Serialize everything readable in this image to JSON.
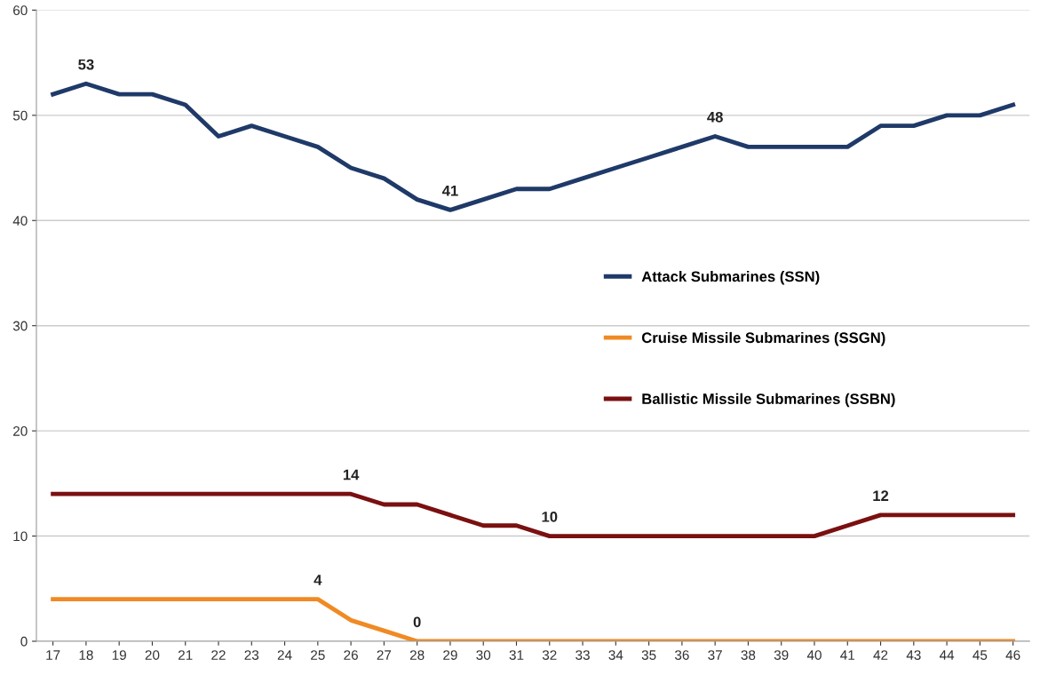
{
  "chart_data": {
    "type": "line",
    "categories": [
      "17",
      "18",
      "19",
      "20",
      "21",
      "22",
      "23",
      "24",
      "25",
      "26",
      "27",
      "28",
      "29",
      "30",
      "31",
      "32",
      "33",
      "34",
      "35",
      "36",
      "37",
      "38",
      "39",
      "40",
      "41",
      "42",
      "43",
      "44",
      "45",
      "46"
    ],
    "series": [
      {
        "name": "Attack Submarines (SSN)",
        "color": "#1f3a68",
        "values": [
          52,
          53,
          52,
          52,
          51,
          48,
          49,
          48,
          47,
          45,
          44,
          42,
          41,
          42,
          43,
          43,
          44,
          45,
          46,
          47,
          48,
          47,
          47,
          47,
          47,
          49,
          49,
          50,
          50,
          51
        ],
        "value_labels": [
          null,
          "53",
          null,
          null,
          null,
          null,
          null,
          null,
          null,
          null,
          null,
          null,
          "41",
          null,
          null,
          null,
          null,
          null,
          null,
          null,
          "48",
          null,
          null,
          null,
          null,
          null,
          null,
          null,
          null,
          null
        ]
      },
      {
        "name": "Cruise Missile Submarines (SSGN)",
        "color": "#f08a24",
        "values": [
          4,
          4,
          4,
          4,
          4,
          4,
          4,
          4,
          4,
          2,
          1,
          0,
          0,
          0,
          0,
          0,
          0,
          0,
          0,
          0,
          0,
          0,
          0,
          0,
          0,
          0,
          0,
          0,
          0,
          0
        ],
        "value_labels": [
          null,
          null,
          null,
          null,
          null,
          null,
          null,
          null,
          "4",
          null,
          null,
          "0",
          null,
          null,
          null,
          null,
          null,
          null,
          null,
          null,
          null,
          null,
          null,
          null,
          null,
          null,
          null,
          null,
          null,
          null
        ]
      },
      {
        "name": "Ballistic Missile Submarines (SSBN)",
        "color": "#7a1010",
        "values": [
          14,
          14,
          14,
          14,
          14,
          14,
          14,
          14,
          14,
          14,
          13,
          13,
          12,
          11,
          11,
          10,
          10,
          10,
          10,
          10,
          10,
          10,
          10,
          10,
          11,
          12,
          12,
          12,
          12,
          12
        ],
        "value_labels": [
          null,
          null,
          null,
          null,
          null,
          null,
          null,
          null,
          null,
          "14",
          null,
          null,
          null,
          null,
          null,
          "10",
          null,
          null,
          null,
          null,
          null,
          null,
          null,
          null,
          null,
          "12",
          null,
          null,
          null,
          null
        ]
      }
    ],
    "ylim": [
      0,
      60
    ],
    "yticks": [
      0,
      10,
      20,
      30,
      40,
      50,
      60
    ],
    "grid": "y",
    "legend": "right",
    "marker": "none",
    "line_style": "solid"
  }
}
